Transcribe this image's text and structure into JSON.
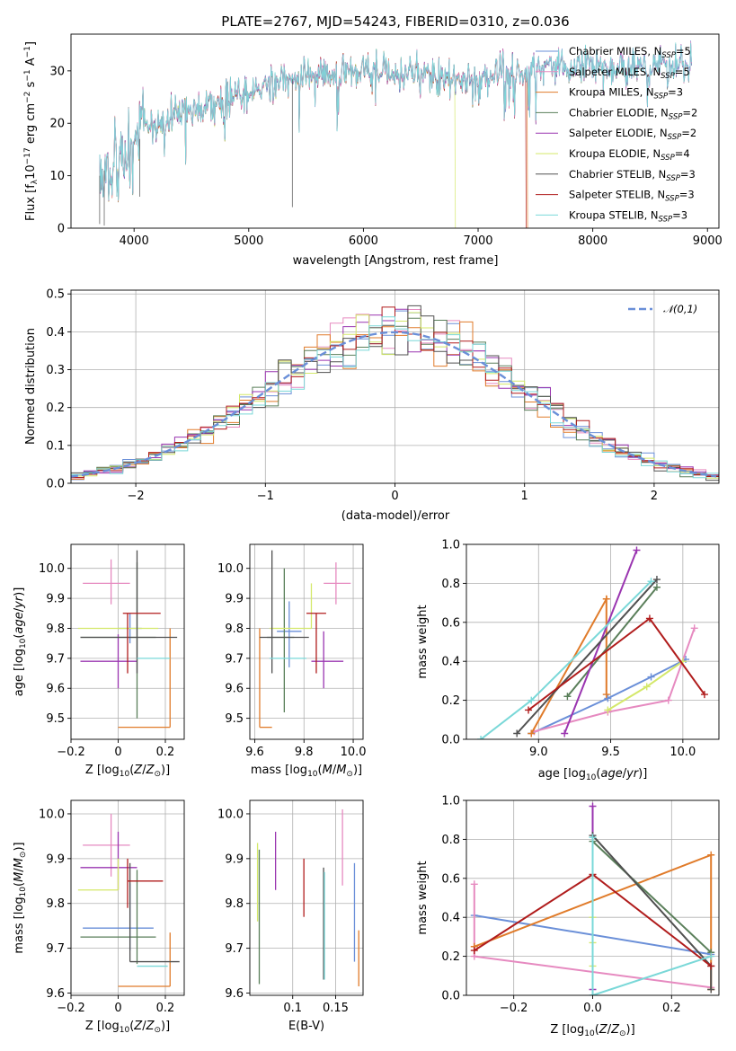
{
  "figure_title": "PLATE=2767, MJD=54243, FIBERID=0310, z=0.036",
  "colors": {
    "Chabrier MILES": "#6a8fd8",
    "Salpeter MILES": "#e68ac0",
    "Kroupa MILES": "#e07b2a",
    "Chabrier ELODIE": "#5a7f5a",
    "Salpeter ELODIE": "#9a35b0",
    "Kroupa ELODIE": "#d4e86a",
    "Chabrier STELIB": "#505050",
    "Salpeter STELIB": "#b01c1c",
    "Kroupa STELIB": "#7ad8d8"
  },
  "chart_data": [
    {
      "id": "spectrum",
      "type": "line",
      "title": "PLATE=2767, MJD=54243, FIBERID=0310, z=0.036",
      "xlabel": "wavelength [Angstrom, rest frame]",
      "ylabel": "Flux [f_λ 10^-17 erg cm^-2 s^-1 A^-1]",
      "xlim": [
        3450,
        9100
      ],
      "ylim": [
        0,
        37
      ],
      "xticks": [
        4000,
        5000,
        6000,
        7000,
        8000,
        9000
      ],
      "yticks": [
        0,
        10,
        20,
        30
      ],
      "grid": false,
      "legend_position": "right",
      "legend": [
        {
          "name": "Chabrier MILES",
          "ssp": "5"
        },
        {
          "name": "Salpeter MILES",
          "ssp": "5"
        },
        {
          "name": "Kroupa MILES",
          "ssp": "3"
        },
        {
          "name": "Chabrier ELODIE",
          "ssp": "2"
        },
        {
          "name": "Salpeter ELODIE",
          "ssp": "2"
        },
        {
          "name": "Kroupa ELODIE",
          "ssp": "4"
        },
        {
          "name": "Chabrier STELIB",
          "ssp": "3"
        },
        {
          "name": "Salpeter STELIB",
          "ssp": "3"
        },
        {
          "name": "Kroupa STELIB",
          "ssp": "3"
        }
      ],
      "continuum": {
        "x": [
          3700,
          3800,
          3900,
          4000,
          4100,
          4200,
          4400,
          4600,
          4800,
          5000,
          5200,
          5400,
          5600,
          5800,
          6000,
          6200,
          6400,
          6600,
          6800,
          7000,
          7200,
          7400,
          7600,
          7800,
          8000,
          8200,
          8400,
          8600,
          8800
        ],
        "y": [
          10,
          12.5,
          14,
          16,
          18,
          19.5,
          21.5,
          23,
          24.5,
          26,
          27.5,
          28.5,
          29,
          29.5,
          30,
          29.5,
          30,
          28.5,
          28,
          28.5,
          29.5,
          30,
          31,
          31,
          31.5,
          30,
          31,
          31,
          31
        ]
      },
      "dropouts": [
        {
          "series": "Kroupa ELODIE",
          "x": 6800
        },
        {
          "series": "Salpeter STELIB",
          "x": 7420
        },
        {
          "series": "Kroupa MILES",
          "x": 7430
        }
      ]
    },
    {
      "id": "residuals",
      "type": "histogram",
      "xlabel": "(data-model)/error",
      "ylabel": "Normed distribution",
      "xlim": [
        -2.5,
        2.5
      ],
      "ylim": [
        0,
        0.51
      ],
      "xticks": [
        -2,
        -1,
        0,
        1,
        2
      ],
      "yticks": [
        0.0,
        0.1,
        0.2,
        0.3,
        0.4,
        0.5
      ],
      "grid": true,
      "legend_position": "top-right",
      "legend": [
        {
          "name": "𝒩(0,1)",
          "color": "#6a8fd8",
          "style": "dashed"
        }
      ],
      "bin_width": 0.1
    },
    {
      "id": "age_vs_Z",
      "type": "errorbar",
      "xlabel": "Z [log10(Z/Z_sun)]",
      "ylabel": "age [log10(age/yr)]",
      "xlim": [
        -0.2,
        0.28
      ],
      "ylim": [
        9.43,
        10.08
      ],
      "xticks": [
        -0.2,
        0.0,
        0.2
      ],
      "yticks": [
        9.5,
        9.6,
        9.7,
        9.8,
        9.9,
        10.0
      ],
      "grid": true,
      "points": [
        {
          "series": "Chabrier MILES",
          "x": 0.05,
          "xerr": [
            0.05,
            0.05
          ],
          "y": 9.8,
          "yerr": [
            0.05,
            0.05
          ]
        },
        {
          "series": "Salpeter MILES",
          "x": -0.03,
          "xerr": [
            0.12,
            0.08
          ],
          "y": 9.95,
          "yerr": [
            0.07,
            0.08
          ]
        },
        {
          "series": "Kroupa MILES",
          "x": 0.22,
          "xerr": [
            0.22,
            0.0
          ],
          "y": 9.47,
          "yerr": [
            0.0,
            0.33
          ]
        },
        {
          "series": "Chabrier ELODIE",
          "x": 0.08,
          "xerr": [
            0.24,
            0.08
          ],
          "y": 9.77,
          "yerr": [
            0.27,
            0.25
          ]
        },
        {
          "series": "Salpeter ELODIE",
          "x": 0.0,
          "xerr": [
            0.16,
            0.08
          ],
          "y": 9.69,
          "yerr": [
            0.09,
            0.09
          ]
        },
        {
          "series": "Kroupa ELODIE",
          "x": 0.0,
          "xerr": [
            0.17,
            0.17
          ],
          "y": 9.8,
          "yerr": [
            0.0,
            0.0
          ]
        },
        {
          "series": "Chabrier STELIB",
          "x": 0.08,
          "xerr": [
            0.24,
            0.17
          ],
          "y": 9.77,
          "yerr": [
            0.12,
            0.29
          ]
        },
        {
          "series": "Salpeter STELIB",
          "x": 0.04,
          "xerr": [
            0.02,
            0.14
          ],
          "y": 9.85,
          "yerr": [
            0.2,
            0.0
          ]
        },
        {
          "series": "Kroupa STELIB",
          "x": 0.08,
          "xerr": [
            0.0,
            0.14
          ],
          "y": 9.7,
          "yerr": [
            0.0,
            0.0
          ]
        }
      ]
    },
    {
      "id": "age_vs_mass",
      "type": "errorbar",
      "xlabel": "mass [log10(M/M_sun)]",
      "ylabel": "",
      "xlim": [
        9.58,
        10.04
      ],
      "ylim": [
        9.43,
        10.08
      ],
      "xticks": [
        9.6,
        9.8,
        10.0
      ],
      "yticks": [
        9.5,
        9.6,
        9.7,
        9.8,
        9.9,
        10.0
      ],
      "grid": true,
      "points": [
        {
          "series": "Chabrier MILES",
          "x": 9.74,
          "xerr": [
            0.05,
            0.05
          ],
          "y": 9.79,
          "yerr": [
            0.12,
            0.1
          ]
        },
        {
          "series": "Salpeter MILES",
          "x": 9.93,
          "xerr": [
            0.05,
            0.06
          ],
          "y": 9.95,
          "yerr": [
            0.07,
            0.07
          ]
        },
        {
          "series": "Kroupa MILES",
          "x": 9.62,
          "xerr": [
            0.0,
            0.05
          ],
          "y": 9.47,
          "yerr": [
            0.0,
            0.33
          ]
        },
        {
          "series": "Chabrier ELODIE",
          "x": 9.72,
          "xerr": [
            0.07,
            0.04
          ],
          "y": 9.77,
          "yerr": [
            0.25,
            0.23
          ]
        },
        {
          "series": "Salpeter ELODIE",
          "x": 9.88,
          "xerr": [
            0.05,
            0.08
          ],
          "y": 9.69,
          "yerr": [
            0.09,
            0.1
          ]
        },
        {
          "series": "Kroupa ELODIE",
          "x": 9.83,
          "xerr": [
            0.17,
            0.0
          ],
          "y": 9.8,
          "yerr": [
            0.0,
            0.15
          ]
        },
        {
          "series": "Chabrier STELIB",
          "x": 9.67,
          "xerr": [
            0.05,
            0.15
          ],
          "y": 9.77,
          "yerr": [
            0.12,
            0.29
          ]
        },
        {
          "series": "Salpeter STELIB",
          "x": 9.85,
          "xerr": [
            0.04,
            0.04
          ],
          "y": 9.85,
          "yerr": [
            0.2,
            0.0
          ]
        },
        {
          "series": "Kroupa STELIB",
          "x": 9.66,
          "xerr": [
            0.0,
            0.15
          ],
          "y": 9.7,
          "yerr": [
            0.0,
            0.0
          ]
        }
      ]
    },
    {
      "id": "mass_weight_vs_age",
      "type": "line",
      "xlabel": "age [log10(age/yr)]",
      "ylabel": "mass weight",
      "xlim": [
        8.5,
        10.25
      ],
      "ylim": [
        0.0,
        1.0
      ],
      "xticks": [
        9.0,
        9.5,
        10.0
      ],
      "yticks": [
        0.0,
        0.2,
        0.4,
        0.6,
        0.8,
        1.0
      ],
      "grid": true,
      "series": [
        {
          "name": "Chabrier MILES",
          "x": [
            8.95,
            9.48,
            9.78,
            10.02
          ],
          "y": [
            0.03,
            0.21,
            0.32,
            0.41
          ]
        },
        {
          "name": "Salpeter MILES",
          "x": [
            8.97,
            9.48,
            9.9,
            10.08
          ],
          "y": [
            0.04,
            0.14,
            0.2,
            0.57
          ]
        },
        {
          "name": "Kroupa MILES",
          "x": [
            8.95,
            9.47,
            9.47
          ],
          "y": [
            0.03,
            0.72,
            0.23
          ]
        },
        {
          "name": "Chabrier ELODIE",
          "x": [
            9.2,
            9.82
          ],
          "y": [
            0.22,
            0.78
          ]
        },
        {
          "name": "Salpeter ELODIE",
          "x": [
            9.18,
            9.68
          ],
          "y": [
            0.03,
            0.97
          ]
        },
        {
          "name": "Kroupa ELODIE",
          "x": [
            9.48,
            9.75,
            10.0
          ],
          "y": [
            0.15,
            0.27,
            0.4
          ]
        },
        {
          "name": "Chabrier STELIB",
          "x": [
            8.85,
            9.82
          ],
          "y": [
            0.03,
            0.82
          ]
        },
        {
          "name": "Salpeter STELIB",
          "x": [
            8.93,
            9.77,
            10.15
          ],
          "y": [
            0.15,
            0.62,
            0.23
          ]
        },
        {
          "name": "Kroupa STELIB",
          "x": [
            8.6,
            8.95,
            9.78
          ],
          "y": [
            0.0,
            0.2,
            0.81
          ]
        }
      ]
    },
    {
      "id": "mass_vs_Z",
      "type": "errorbar",
      "xlabel": "Z [log10(Z/Z_sun)]",
      "ylabel": "mass [log10(M/M_sun)]",
      "xlim": [
        -0.2,
        0.28
      ],
      "ylim": [
        9.595,
        10.03
      ],
      "xticks": [
        -0.2,
        0.0,
        0.2
      ],
      "yticks": [
        9.6,
        9.7,
        9.8,
        9.9,
        10.0
      ],
      "grid": true,
      "points": [
        {
          "series": "Chabrier MILES",
          "x": 0.05,
          "xerr": [
            0.2,
            0.1
          ],
          "y": 9.745,
          "yerr": [
            0.05,
            0.1
          ]
        },
        {
          "series": "Salpeter MILES",
          "x": -0.03,
          "xerr": [
            0.12,
            0.08
          ],
          "y": 9.93,
          "yerr": [
            0.07,
            0.07
          ]
        },
        {
          "series": "Kroupa MILES",
          "x": 0.22,
          "xerr": [
            0.22,
            0.0
          ],
          "y": 9.615,
          "yerr": [
            0.0,
            0.12
          ]
        },
        {
          "series": "Chabrier ELODIE",
          "x": 0.08,
          "xerr": [
            0.24,
            0.08
          ],
          "y": 9.725,
          "yerr": [
            0.06,
            0.15
          ]
        },
        {
          "series": "Salpeter ELODIE",
          "x": 0.0,
          "xerr": [
            0.16,
            0.08
          ],
          "y": 9.88,
          "yerr": [
            0.05,
            0.08
          ]
        },
        {
          "series": "Kroupa ELODIE",
          "x": 0.0,
          "xerr": [
            0.17,
            0.0
          ],
          "y": 9.83,
          "yerr": [
            0.0,
            0.07
          ]
        },
        {
          "series": "Chabrier STELIB",
          "x": 0.05,
          "xerr": [
            0.0,
            0.21
          ],
          "y": 9.67,
          "yerr": [
            0.0,
            0.22
          ]
        },
        {
          "series": "Salpeter STELIB",
          "x": 0.04,
          "xerr": [
            0.0,
            0.15
          ],
          "y": 9.85,
          "yerr": [
            0.06,
            0.05
          ]
        },
        {
          "series": "Kroupa STELIB",
          "x": 0.08,
          "xerr": [
            0.0,
            0.13
          ],
          "y": 9.66,
          "yerr": [
            0.0,
            0.0
          ]
        }
      ]
    },
    {
      "id": "mass_vs_ebv",
      "type": "errorbar",
      "xlabel": "E(B-V)",
      "ylabel": "",
      "xlim": [
        0.05,
        0.182
      ],
      "ylim": [
        9.595,
        10.03
      ],
      "xticks": [
        0.1,
        0.15
      ],
      "yticks": [
        9.6,
        9.7,
        9.8,
        9.9,
        10.0
      ],
      "grid": true,
      "points": [
        {
          "series": "Chabrier MILES",
          "x": 0.172,
          "y": 9.78,
          "yerr": [
            0.11,
            0.11
          ]
        },
        {
          "series": "Salpeter MILES",
          "x": 0.158,
          "y": 9.93,
          "yerr": [
            0.09,
            0.08
          ]
        },
        {
          "series": "Kroupa MILES",
          "x": 0.177,
          "y": 9.675,
          "yerr": [
            0.06,
            0.065
          ]
        },
        {
          "series": "Chabrier ELODIE",
          "x": 0.061,
          "y": 9.77,
          "yerr": [
            0.15,
            0.15
          ]
        },
        {
          "series": "Salpeter ELODIE",
          "x": 0.08,
          "y": 9.89,
          "yerr": [
            0.06,
            0.07
          ]
        },
        {
          "series": "Kroupa ELODIE",
          "x": 0.059,
          "y": 9.85,
          "yerr": [
            0.09,
            0.085
          ]
        },
        {
          "series": "Chabrier STELIB",
          "x": 0.136,
          "y": 9.75,
          "yerr": [
            0.12,
            0.13
          ]
        },
        {
          "series": "Salpeter STELIB",
          "x": 0.113,
          "y": 9.84,
          "yerr": [
            0.07,
            0.06
          ]
        },
        {
          "series": "Kroupa STELIB",
          "x": 0.137,
          "y": 9.75,
          "yerr": [
            0.12,
            0.12
          ]
        }
      ]
    },
    {
      "id": "mass_weight_vs_Z",
      "type": "line",
      "xlabel": "Z [log10(Z/Z_sun)]",
      "ylabel": "mass weight",
      "xlim": [
        -0.32,
        0.32
      ],
      "ylim": [
        0.0,
        1.0
      ],
      "xticks": [
        -0.2,
        0.0,
        0.2
      ],
      "yticks": [
        0.0,
        0.2,
        0.4,
        0.6,
        0.8,
        1.0
      ],
      "grid": true,
      "series": [
        {
          "name": "Chabrier MILES",
          "x": [
            -0.3,
            0.3
          ],
          "y": [
            0.41,
            0.21
          ]
        },
        {
          "name": "Salpeter MILES",
          "x": [
            -0.3,
            -0.3,
            0.3
          ],
          "y": [
            0.57,
            0.2,
            0.04
          ]
        },
        {
          "name": "Kroupa MILES",
          "x": [
            -0.3,
            0.3,
            0.3
          ],
          "y": [
            0.25,
            0.72,
            0.03
          ]
        },
        {
          "name": "Chabrier ELODIE",
          "x": [
            0.0,
            0.3
          ],
          "y": [
            0.79,
            0.22
          ]
        },
        {
          "name": "Salpeter ELODIE",
          "x": [
            0.0,
            0.0
          ],
          "y": [
            0.97,
            0.03
          ]
        },
        {
          "name": "Kroupa ELODIE",
          "x": [
            0.0,
            0.0,
            0.0
          ],
          "y": [
            0.15,
            0.27,
            0.4
          ]
        },
        {
          "name": "Chabrier STELIB",
          "x": [
            0.0,
            0.3,
            0.3
          ],
          "y": [
            0.82,
            0.15,
            0.03
          ]
        },
        {
          "name": "Salpeter STELIB",
          "x": [
            -0.3,
            0.0,
            0.3
          ],
          "y": [
            0.23,
            0.62,
            0.15
          ]
        },
        {
          "name": "Kroupa STELIB",
          "x": [
            0.0,
            0.0,
            0.3
          ],
          "y": [
            0.81,
            0.0,
            0.2
          ]
        }
      ]
    }
  ]
}
